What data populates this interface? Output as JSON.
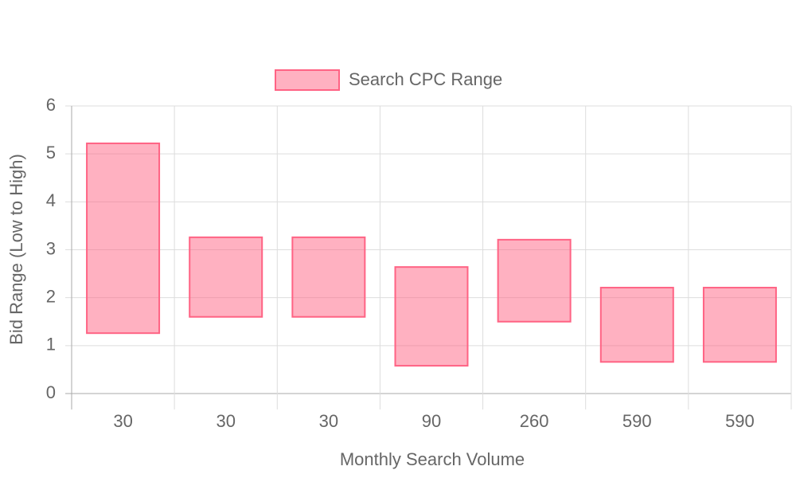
{
  "chart_data": {
    "type": "floating-bar",
    "x_label": "Monthly Search Volume",
    "y_label": "Bid Range (Low to High)",
    "categories": [
      "30",
      "30",
      "30",
      "90",
      "260",
      "590",
      "590"
    ],
    "series": [
      {
        "name": "Search CPC Range",
        "color": "#ff6384",
        "values": [
          [
            1.26,
            5.22
          ],
          [
            1.6,
            3.26
          ],
          [
            1.6,
            3.26
          ],
          [
            0.58,
            2.64
          ],
          [
            1.5,
            3.21
          ],
          [
            0.66,
            2.21
          ],
          [
            0.66,
            2.21
          ]
        ]
      }
    ],
    "ylim": [
      0,
      6
    ],
    "yticks": [
      0,
      1,
      2,
      3,
      4,
      5,
      6
    ],
    "grid": true,
    "legend": "top"
  }
}
